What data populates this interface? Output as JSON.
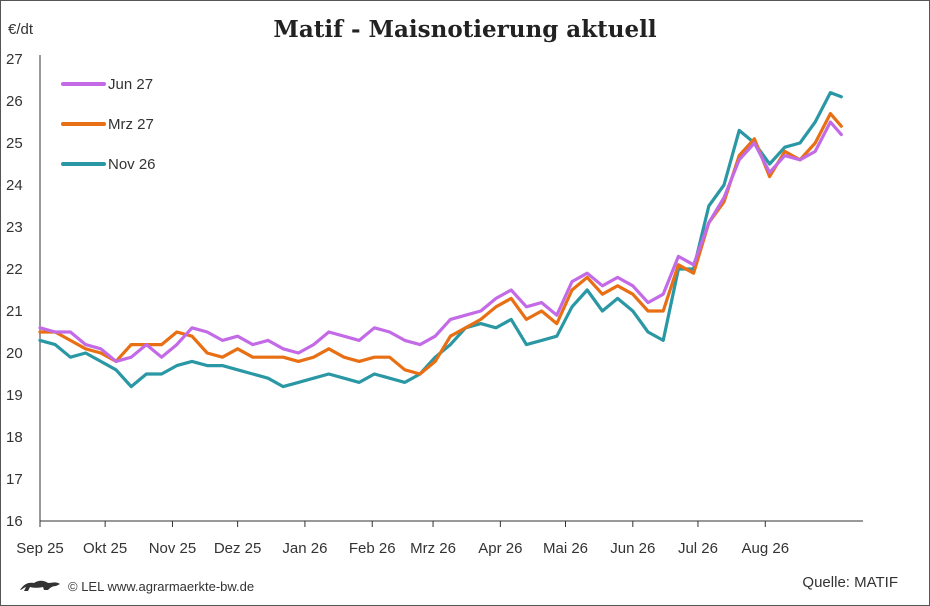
{
  "chart_data": {
    "type": "line",
    "title": "Matif - Maisnotierung aktuell",
    "ylabel": "€/dt",
    "ylim": [
      16,
      27
    ],
    "yticks": [
      16,
      17,
      18,
      19,
      20,
      21,
      22,
      23,
      24,
      25,
      26,
      27
    ],
    "xlim": [
      "2025-09-01",
      "2026-09-15"
    ],
    "xticks": [
      {
        "date": "2025-09-01",
        "label": "Sep 25"
      },
      {
        "date": "2025-10-01",
        "label": "Okt 25"
      },
      {
        "date": "2025-11-01",
        "label": "Nov 25"
      },
      {
        "date": "2025-12-01",
        "label": "Dez 25"
      },
      {
        "date": "2026-01-01",
        "label": "Jan 26"
      },
      {
        "date": "2026-02-01",
        "label": "Feb 26"
      },
      {
        "date": "2026-03-01",
        "label": "Mrz 26"
      },
      {
        "date": "2026-04-01",
        "label": "Apr 26"
      },
      {
        "date": "2026-05-01",
        "label": "Mai 26"
      },
      {
        "date": "2026-06-01",
        "label": "Jun 26"
      },
      {
        "date": "2026-07-01",
        "label": "Jul 26"
      },
      {
        "date": "2026-08-01",
        "label": "Aug 26"
      }
    ],
    "grid": false,
    "legend_position": "top-left",
    "series": [
      {
        "name": "Jun 27",
        "color": "#c36ae6",
        "points": [
          [
            "2025-09-01",
            20.6
          ],
          [
            "2025-09-08",
            20.5
          ],
          [
            "2025-09-15",
            20.5
          ],
          [
            "2025-09-22",
            20.2
          ],
          [
            "2025-09-29",
            20.1
          ],
          [
            "2025-10-06",
            19.8
          ],
          [
            "2025-10-13",
            19.9
          ],
          [
            "2025-10-20",
            20.2
          ],
          [
            "2025-10-27",
            19.9
          ],
          [
            "2025-11-03",
            20.2
          ],
          [
            "2025-11-10",
            20.6
          ],
          [
            "2025-11-17",
            20.5
          ],
          [
            "2025-11-24",
            20.3
          ],
          [
            "2025-12-01",
            20.4
          ],
          [
            "2025-12-08",
            20.2
          ],
          [
            "2025-12-15",
            20.3
          ],
          [
            "2025-12-22",
            20.1
          ],
          [
            "2025-12-29",
            20.0
          ],
          [
            "2026-01-05",
            20.2
          ],
          [
            "2026-01-12",
            20.5
          ],
          [
            "2026-01-19",
            20.4
          ],
          [
            "2026-01-26",
            20.3
          ],
          [
            "2026-02-02",
            20.6
          ],
          [
            "2026-02-09",
            20.5
          ],
          [
            "2026-02-16",
            20.3
          ],
          [
            "2026-02-23",
            20.2
          ],
          [
            "2026-03-02",
            20.4
          ],
          [
            "2026-03-09",
            20.8
          ],
          [
            "2026-03-16",
            20.9
          ],
          [
            "2026-03-23",
            21.0
          ],
          [
            "2026-03-30",
            21.3
          ],
          [
            "2026-04-06",
            21.5
          ],
          [
            "2026-04-13",
            21.1
          ],
          [
            "2026-04-20",
            21.2
          ],
          [
            "2026-04-27",
            20.9
          ],
          [
            "2026-05-04",
            21.7
          ],
          [
            "2026-05-11",
            21.9
          ],
          [
            "2026-05-18",
            21.6
          ],
          [
            "2026-05-25",
            21.8
          ],
          [
            "2026-06-01",
            21.6
          ],
          [
            "2026-06-08",
            21.2
          ],
          [
            "2026-06-15",
            21.4
          ],
          [
            "2026-06-22",
            22.3
          ],
          [
            "2026-06-29",
            22.1
          ],
          [
            "2026-07-06",
            23.1
          ],
          [
            "2026-07-13",
            23.7
          ],
          [
            "2026-07-20",
            24.6
          ],
          [
            "2026-07-27",
            25.0
          ],
          [
            "2026-08-03",
            24.3
          ],
          [
            "2026-08-10",
            24.7
          ],
          [
            "2026-08-17",
            24.6
          ],
          [
            "2026-08-24",
            24.8
          ],
          [
            "2026-08-31",
            25.5
          ],
          [
            "2026-09-05",
            25.2
          ]
        ]
      },
      {
        "name": "Mrz 27",
        "color": "#e86f13",
        "points": [
          [
            "2025-09-01",
            20.5
          ],
          [
            "2025-09-08",
            20.5
          ],
          [
            "2025-09-15",
            20.3
          ],
          [
            "2025-09-22",
            20.1
          ],
          [
            "2025-09-29",
            20.0
          ],
          [
            "2025-10-06",
            19.8
          ],
          [
            "2025-10-13",
            20.2
          ],
          [
            "2025-10-20",
            20.2
          ],
          [
            "2025-10-27",
            20.2
          ],
          [
            "2025-11-03",
            20.5
          ],
          [
            "2025-11-10",
            20.4
          ],
          [
            "2025-11-17",
            20.0
          ],
          [
            "2025-11-24",
            19.9
          ],
          [
            "2025-12-01",
            20.1
          ],
          [
            "2025-12-08",
            19.9
          ],
          [
            "2025-12-15",
            19.9
          ],
          [
            "2025-12-22",
            19.9
          ],
          [
            "2025-12-29",
            19.8
          ],
          [
            "2026-01-05",
            19.9
          ],
          [
            "2026-01-12",
            20.1
          ],
          [
            "2026-01-19",
            19.9
          ],
          [
            "2026-01-26",
            19.8
          ],
          [
            "2026-02-02",
            19.9
          ],
          [
            "2026-02-09",
            19.9
          ],
          [
            "2026-02-16",
            19.6
          ],
          [
            "2026-02-23",
            19.5
          ],
          [
            "2026-03-02",
            19.8
          ],
          [
            "2026-03-09",
            20.4
          ],
          [
            "2026-03-16",
            20.6
          ],
          [
            "2026-03-23",
            20.8
          ],
          [
            "2026-03-30",
            21.1
          ],
          [
            "2026-04-06",
            21.3
          ],
          [
            "2026-04-13",
            20.8
          ],
          [
            "2026-04-20",
            21.0
          ],
          [
            "2026-04-27",
            20.7
          ],
          [
            "2026-05-04",
            21.5
          ],
          [
            "2026-05-11",
            21.8
          ],
          [
            "2026-05-18",
            21.4
          ],
          [
            "2026-05-25",
            21.6
          ],
          [
            "2026-06-01",
            21.4
          ],
          [
            "2026-06-08",
            21.0
          ],
          [
            "2026-06-15",
            21.0
          ],
          [
            "2026-06-22",
            22.1
          ],
          [
            "2026-06-29",
            21.9
          ],
          [
            "2026-07-06",
            23.1
          ],
          [
            "2026-07-13",
            23.6
          ],
          [
            "2026-07-20",
            24.7
          ],
          [
            "2026-07-27",
            25.1
          ],
          [
            "2026-08-03",
            24.2
          ],
          [
            "2026-08-10",
            24.8
          ],
          [
            "2026-08-17",
            24.6
          ],
          [
            "2026-08-24",
            25.0
          ],
          [
            "2026-08-31",
            25.7
          ],
          [
            "2026-09-05",
            25.4
          ]
        ]
      },
      {
        "name": "Nov 26",
        "color": "#2a97a5",
        "points": [
          [
            "2025-09-01",
            20.3
          ],
          [
            "2025-09-08",
            20.2
          ],
          [
            "2025-09-15",
            19.9
          ],
          [
            "2025-09-22",
            20.0
          ],
          [
            "2025-09-29",
            19.8
          ],
          [
            "2025-10-06",
            19.6
          ],
          [
            "2025-10-13",
            19.2
          ],
          [
            "2025-10-20",
            19.5
          ],
          [
            "2025-10-27",
            19.5
          ],
          [
            "2025-11-03",
            19.7
          ],
          [
            "2025-11-10",
            19.8
          ],
          [
            "2025-11-17",
            19.7
          ],
          [
            "2025-11-24",
            19.7
          ],
          [
            "2025-12-01",
            19.6
          ],
          [
            "2025-12-08",
            19.5
          ],
          [
            "2025-12-15",
            19.4
          ],
          [
            "2025-12-22",
            19.2
          ],
          [
            "2025-12-29",
            19.3
          ],
          [
            "2026-01-05",
            19.4
          ],
          [
            "2026-01-12",
            19.5
          ],
          [
            "2026-01-19",
            19.4
          ],
          [
            "2026-01-26",
            19.3
          ],
          [
            "2026-02-02",
            19.5
          ],
          [
            "2026-02-09",
            19.4
          ],
          [
            "2026-02-16",
            19.3
          ],
          [
            "2026-02-23",
            19.5
          ],
          [
            "2026-03-02",
            19.9
          ],
          [
            "2026-03-09",
            20.2
          ],
          [
            "2026-03-16",
            20.6
          ],
          [
            "2026-03-23",
            20.7
          ],
          [
            "2026-03-30",
            20.6
          ],
          [
            "2026-04-06",
            20.8
          ],
          [
            "2026-04-13",
            20.2
          ],
          [
            "2026-04-20",
            20.3
          ],
          [
            "2026-04-27",
            20.4
          ],
          [
            "2026-05-04",
            21.1
          ],
          [
            "2026-05-11",
            21.5
          ],
          [
            "2026-05-18",
            21.0
          ],
          [
            "2026-05-25",
            21.3
          ],
          [
            "2026-06-01",
            21.0
          ],
          [
            "2026-06-08",
            20.5
          ],
          [
            "2026-06-15",
            20.3
          ],
          [
            "2026-06-22",
            22.0
          ],
          [
            "2026-06-29",
            22.0
          ],
          [
            "2026-07-06",
            23.5
          ],
          [
            "2026-07-13",
            24.0
          ],
          [
            "2026-07-20",
            25.3
          ],
          [
            "2026-07-27",
            25.0
          ],
          [
            "2026-08-03",
            24.5
          ],
          [
            "2026-08-10",
            24.9
          ],
          [
            "2026-08-17",
            25.0
          ],
          [
            "2026-08-24",
            25.5
          ],
          [
            "2026-08-31",
            26.2
          ],
          [
            "2026-09-05",
            26.1
          ]
        ]
      }
    ]
  },
  "footer": {
    "credit": "© LEL www.agrarmaerkte-bw.de",
    "source": "Quelle: MATIF"
  }
}
